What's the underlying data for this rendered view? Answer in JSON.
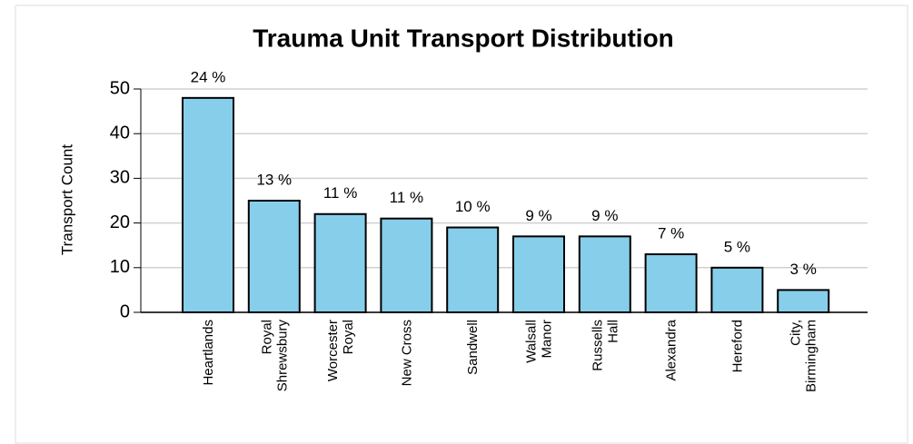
{
  "chart_data": {
    "type": "bar",
    "title": "Trauma Unit Transport Distribution",
    "y_label": "Transport Count",
    "categories": [
      "Heartlands",
      "Royal\nShrewsbury",
      "Worcester\nRoyal",
      "New Cross",
      "Sandwell",
      "Walsall\nManor",
      "Russells\nHall",
      "Alexandra",
      "Hereford",
      "City,\nBirmingham"
    ],
    "values": [
      48,
      25,
      22,
      21,
      19,
      17,
      17,
      13,
      10,
      5
    ],
    "percent_labels": [
      "24 %",
      "13 %",
      "11 %",
      "11 %",
      "10 %",
      "9 %",
      "9 %",
      "7 %",
      "5 %",
      "3 %"
    ],
    "color": "#87ceeb",
    "ylim": [
      0,
      50
    ],
    "yticks": [
      0,
      10,
      20,
      30,
      40,
      50
    ],
    "grid": true
  }
}
